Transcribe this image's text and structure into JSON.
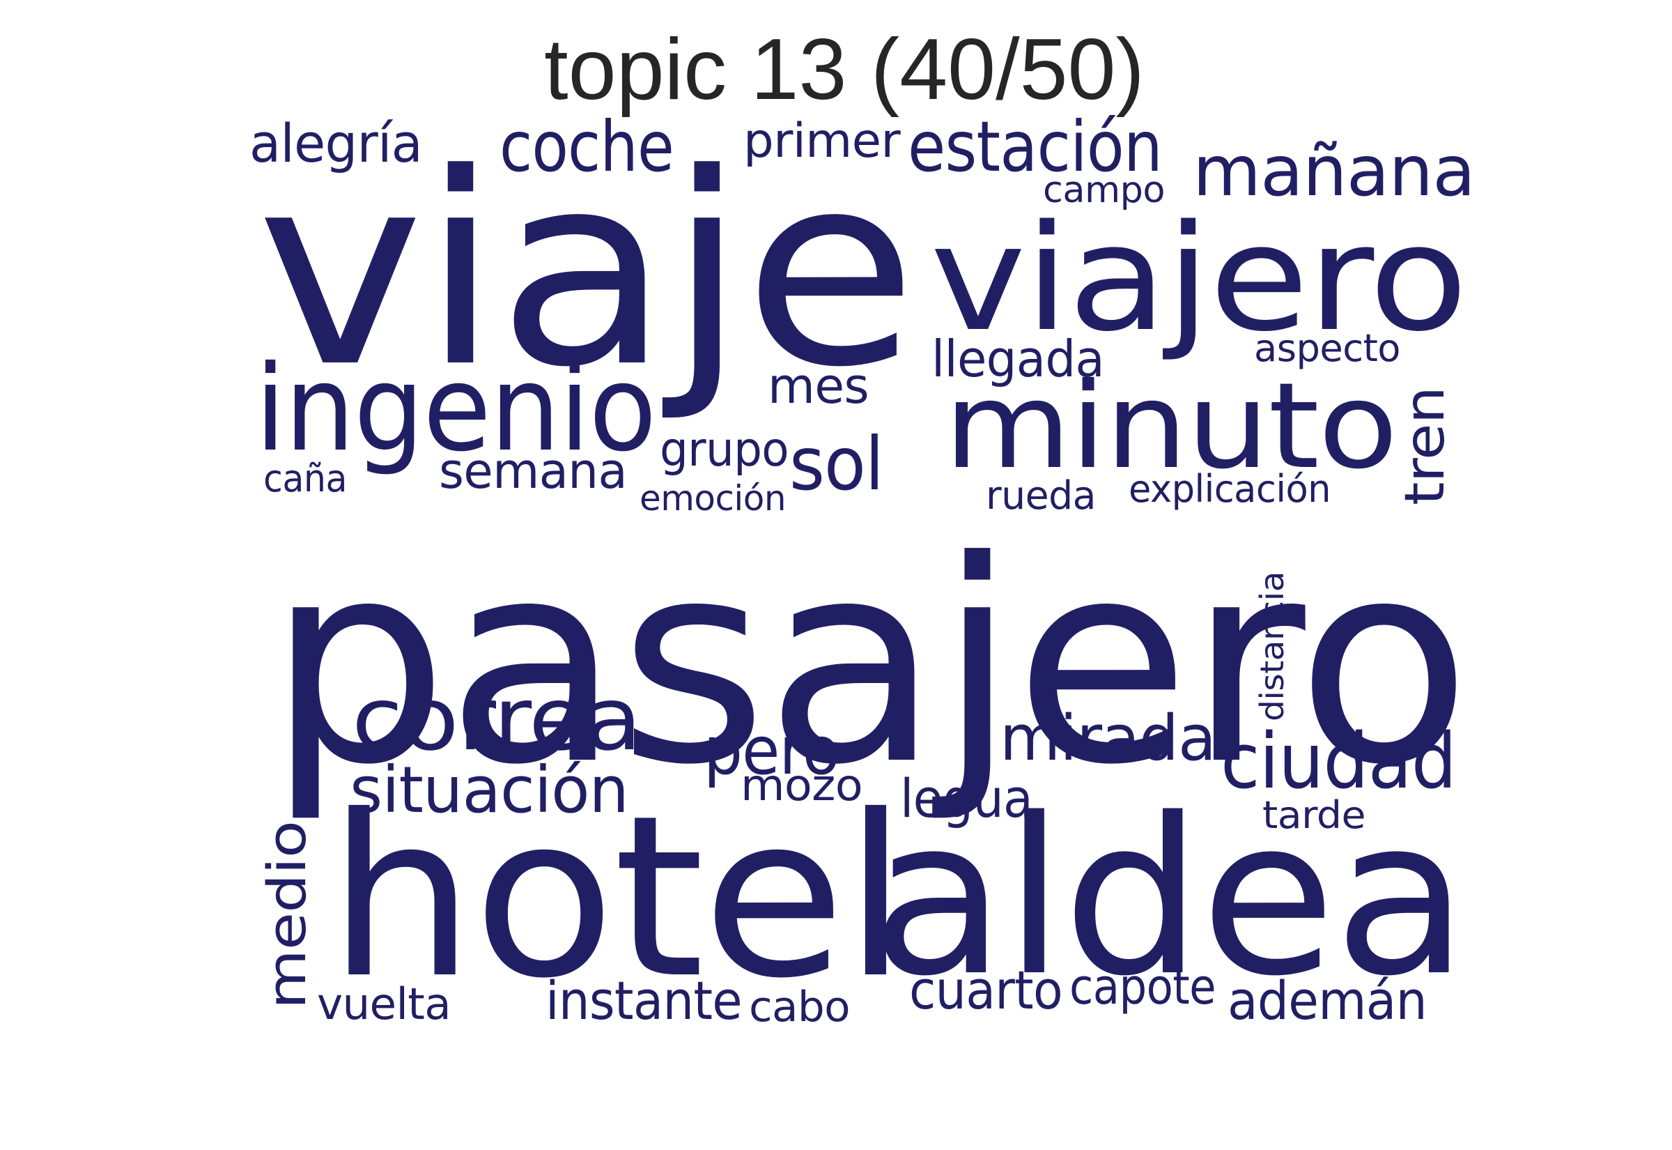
{
  "title": "topic 13 (40/50)",
  "word_color": "#211f64",
  "title_color": "#262626",
  "words": [
    "pasajero",
    "viaje",
    "hotel",
    "aldea",
    "viajero",
    "ingenio",
    "minuto",
    "correa",
    "mañana",
    "estación",
    "coche",
    "situación",
    "ciudad",
    "mirada",
    "medio",
    "sol",
    "tren",
    "pero",
    "alegría",
    "cuarto",
    "instante",
    "llegada",
    "legua",
    "ademán",
    "semana",
    "mes",
    "primer",
    "capote",
    "grupo",
    "vuelta",
    "mozo",
    "explicación",
    "cabo",
    "rueda",
    "aspecto",
    "emoción",
    "tarde",
    "caña",
    "distancia",
    "campo"
  ]
}
